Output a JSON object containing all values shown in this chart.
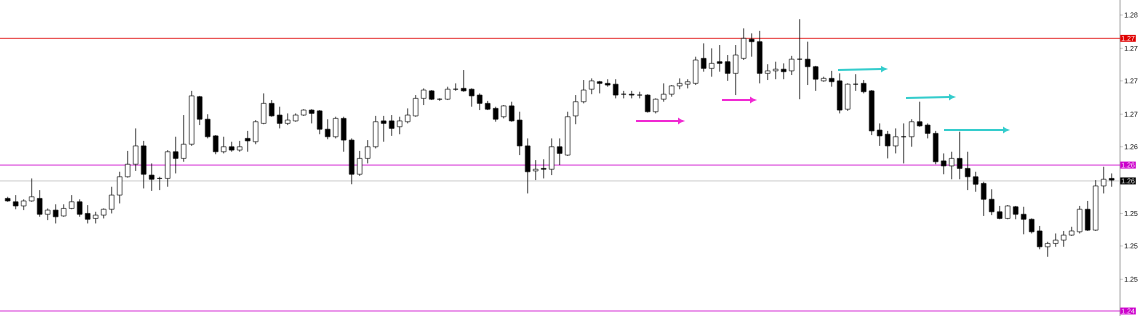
{
  "chart_data": {
    "type": "candlestick",
    "categories": [
      null,
      null,
      null,
      null,
      null,
      null,
      null,
      null,
      null,
      null,
      null,
      null,
      null,
      null,
      null,
      null,
      null,
      null,
      null,
      null,
      null,
      null,
      null,
      null,
      null,
      null,
      null,
      null,
      null,
      null,
      null,
      null,
      null,
      null,
      null,
      null,
      null,
      null,
      null,
      null,
      null,
      null,
      null,
      null,
      null,
      null,
      null,
      null,
      null,
      null,
      null,
      null,
      null,
      null,
      null,
      null,
      null,
      null,
      null,
      null,
      null,
      null,
      null,
      null,
      null,
      null,
      null,
      null,
      null,
      null,
      null,
      null,
      null,
      null,
      null,
      null,
      null,
      null,
      null,
      null,
      null,
      null,
      null,
      null,
      null,
      null,
      null,
      null,
      null,
      null,
      null,
      null,
      null,
      null,
      null,
      null,
      null,
      null,
      null,
      null,
      null,
      null,
      null,
      null,
      null,
      null,
      null,
      null,
      null,
      null,
      null,
      null,
      null,
      null,
      null,
      null,
      null,
      null,
      null,
      null,
      null,
      null,
      null,
      null,
      null,
      null,
      null,
      null,
      null,
      null,
      null,
      null,
      null,
      null,
      null,
      null,
      null,
      null,
      null
    ],
    "ohlc": [
      [
        1.2553,
        1.2555,
        1.2549,
        1.255
      ],
      [
        1.2549,
        1.2557,
        1.254,
        1.2544
      ],
      [
        1.2544,
        1.2552,
        1.2539,
        1.255
      ],
      [
        1.255,
        1.2577,
        1.2549,
        1.2555
      ],
      [
        1.2553,
        1.2563,
        1.2531,
        1.2534
      ],
      [
        1.2534,
        1.2541,
        1.2527,
        1.2539
      ],
      [
        1.2539,
        1.2546,
        1.2523,
        1.2531
      ],
      [
        1.2532,
        1.2546,
        1.2531,
        1.2541
      ],
      [
        1.2541,
        1.2557,
        1.254,
        1.2549
      ],
      [
        1.2549,
        1.2552,
        1.2531,
        1.2534
      ],
      [
        1.2535,
        1.2545,
        1.2523,
        1.2528
      ],
      [
        1.2529,
        1.2537,
        1.2523,
        1.2533
      ],
      [
        1.2533,
        1.2541,
        1.2529,
        1.254
      ],
      [
        1.254,
        1.2567,
        1.2535,
        1.2557
      ],
      [
        1.2557,
        1.2585,
        1.2547,
        1.2579
      ],
      [
        1.2579,
        1.261,
        1.2578,
        1.2594
      ],
      [
        1.2594,
        1.2637,
        1.2586,
        1.2616
      ],
      [
        1.2616,
        1.2622,
        1.2565,
        1.2582
      ],
      [
        1.2581,
        1.2595,
        1.2562,
        1.2576
      ],
      [
        1.2577,
        1.2579,
        1.2563,
        1.2577
      ],
      [
        1.2577,
        1.2611,
        1.2567,
        1.2609
      ],
      [
        1.2609,
        1.2627,
        1.2583,
        1.2601
      ],
      [
        1.2601,
        1.2653,
        1.2597,
        1.2618
      ],
      [
        1.2618,
        1.2682,
        1.2616,
        1.2676
      ],
      [
        1.2675,
        1.2676,
        1.2641,
        1.2648
      ],
      [
        1.2648,
        1.2654,
        1.2625,
        1.2627
      ],
      [
        1.2628,
        1.2629,
        1.2606,
        1.2609
      ],
      [
        1.2609,
        1.2627,
        1.2607,
        1.2615
      ],
      [
        1.2615,
        1.2621,
        1.2609,
        1.2611
      ],
      [
        1.2611,
        1.2622,
        1.2609,
        1.2615
      ],
      [
        1.2625,
        1.2634,
        1.2609,
        1.2622
      ],
      [
        1.2621,
        1.2647,
        1.2618,
        1.2645
      ],
      [
        1.2643,
        1.2679,
        1.2642,
        1.2667
      ],
      [
        1.2667,
        1.2671,
        1.2651,
        1.2652
      ],
      [
        1.2653,
        1.2663,
        1.2637,
        1.2643
      ],
      [
        1.2643,
        1.2655,
        1.2641,
        1.2647
      ],
      [
        1.2646,
        1.2655,
        1.2645,
        1.2653
      ],
      [
        1.2653,
        1.266,
        1.2652,
        1.2659
      ],
      [
        1.2659,
        1.266,
        1.2643,
        1.2655
      ],
      [
        1.2658,
        1.2659,
        1.263,
        1.2636
      ],
      [
        1.2636,
        1.2648,
        1.2624,
        1.2627
      ],
      [
        1.2627,
        1.2651,
        1.2625,
        1.2649
      ],
      [
        1.2649,
        1.2651,
        1.2609,
        1.2623
      ],
      [
        1.2623,
        1.2625,
        1.257,
        1.2582
      ],
      [
        1.2582,
        1.261,
        1.258,
        1.2601
      ],
      [
        1.2601,
        1.2623,
        1.2595,
        1.2615
      ],
      [
        1.2615,
        1.2652,
        1.2613,
        1.2645
      ],
      [
        1.2646,
        1.2652,
        1.2621,
        1.2643
      ],
      [
        1.2646,
        1.2653,
        1.2628,
        1.2637
      ],
      [
        1.2639,
        1.2651,
        1.263,
        1.2646
      ],
      [
        1.2645,
        1.2661,
        1.2643,
        1.2653
      ],
      [
        1.2652,
        1.2677,
        1.2651,
        1.2673
      ],
      [
        1.2673,
        1.2685,
        1.2665,
        1.2683
      ],
      [
        1.2682,
        1.2683,
        1.2671,
        1.2672
      ],
      [
        1.2672,
        1.2673,
        1.267,
        1.2672
      ],
      [
        1.2672,
        1.2687,
        1.2671,
        1.2684
      ],
      [
        1.2684,
        1.2691,
        1.2682,
        1.2684
      ],
      [
        1.2685,
        1.2707,
        1.2681,
        1.2682
      ],
      [
        1.2684,
        1.2685,
        1.2663,
        1.2676
      ],
      [
        1.2677,
        1.2679,
        1.2659,
        1.2667
      ],
      [
        1.2667,
        1.267,
        1.2659,
        1.266
      ],
      [
        1.2661,
        1.2663,
        1.2645,
        1.2648
      ],
      [
        1.2651,
        1.2665,
        1.2649,
        1.2664
      ],
      [
        1.2664,
        1.2669,
        1.2645,
        1.2646
      ],
      [
        1.2647,
        1.2657,
        1.2605,
        1.2616
      ],
      [
        1.2616,
        1.2625,
        1.2559,
        1.2585
      ],
      [
        1.2586,
        1.2599,
        1.2575,
        1.2588
      ],
      [
        1.2589,
        1.26,
        1.2577,
        1.2588
      ],
      [
        1.2588,
        1.2625,
        1.2581,
        1.2615
      ],
      [
        1.2615,
        1.2625,
        1.2593,
        1.2607
      ],
      [
        1.2605,
        1.2657,
        1.2604,
        1.2651
      ],
      [
        1.2652,
        1.2677,
        1.2642,
        1.2669
      ],
      [
        1.2669,
        1.2695,
        1.2667,
        1.2683
      ],
      [
        1.2684,
        1.2697,
        1.2678,
        1.2694
      ],
      [
        1.2693,
        1.2694,
        1.2679,
        1.2691
      ],
      [
        1.2691,
        1.2696,
        1.2687,
        1.2689
      ],
      [
        1.269,
        1.2696,
        1.2673,
        1.2677
      ],
      [
        1.2678,
        1.2682,
        1.2673,
        1.2678
      ],
      [
        1.2678,
        1.2682,
        1.2673,
        1.2677
      ],
      [
        1.2677,
        1.2681,
        1.2673,
        1.2677
      ],
      [
        1.2677,
        1.2678,
        1.2656,
        1.2657
      ],
      [
        1.2657,
        1.2673,
        1.2655,
        1.2672
      ],
      [
        1.2672,
        1.2691,
        1.2669,
        1.2678
      ],
      [
        1.2678,
        1.2689,
        1.2675,
        1.2688
      ],
      [
        1.2688,
        1.2697,
        1.2684,
        1.2691
      ],
      [
        1.269,
        1.2696,
        1.2685,
        1.2693
      ],
      [
        1.2691,
        1.2723,
        1.2689,
        1.2719
      ],
      [
        1.2721,
        1.2739,
        1.2705,
        1.2709
      ],
      [
        1.2709,
        1.2733,
        1.2699,
        1.2715
      ],
      [
        1.2717,
        1.2737,
        1.2705,
        1.2715
      ],
      [
        1.2717,
        1.2725,
        1.2694,
        1.2703
      ],
      [
        1.2703,
        1.2737,
        1.2677,
        1.2725
      ],
      [
        1.2721,
        1.2757,
        1.2719,
        1.2745
      ],
      [
        1.2744,
        1.2751,
        1.2723,
        1.2741
      ],
      [
        1.2741,
        1.2754,
        1.2691,
        1.2703
      ],
      [
        1.2703,
        1.2714,
        1.2695,
        1.2706
      ],
      [
        1.2706,
        1.2717,
        1.2696,
        1.2708
      ],
      [
        1.2708,
        1.2715,
        1.2696,
        1.2705
      ],
      [
        1.2706,
        1.2724,
        1.2701,
        1.272
      ],
      [
        1.272,
        1.2768,
        1.2672,
        1.272
      ],
      [
        1.272,
        1.2741,
        1.2689,
        1.2711
      ],
      [
        1.2711,
        1.2712,
        1.2682,
        1.2696
      ],
      [
        1.2694,
        1.2699,
        1.2693,
        1.2697
      ],
      [
        1.2697,
        1.2706,
        1.2687,
        1.2693
      ],
      [
        1.2694,
        1.2703,
        1.2655,
        1.2659
      ],
      [
        1.266,
        1.2691,
        1.2658,
        1.269
      ],
      [
        1.269,
        1.2702,
        1.2682,
        1.269
      ],
      [
        1.2691,
        1.2695,
        1.2679,
        1.2681
      ],
      [
        1.2682,
        1.2683,
        1.2629,
        1.2634
      ],
      [
        1.2635,
        1.2643,
        1.2616,
        1.2628
      ],
      [
        1.263,
        1.2634,
        1.2601,
        1.2616
      ],
      [
        1.2616,
        1.2637,
        1.2607,
        1.2627
      ],
      [
        1.2627,
        1.2643,
        1.2595,
        1.2627
      ],
      [
        1.2627,
        1.2648,
        1.2615,
        1.2645
      ],
      [
        1.2645,
        1.2669,
        1.2639,
        1.264
      ],
      [
        1.2641,
        1.2643,
        1.2625,
        1.2631
      ],
      [
        1.2631,
        1.2634,
        1.2594,
        1.2597
      ],
      [
        1.2598,
        1.2607,
        1.2582,
        1.2592
      ],
      [
        1.2592,
        1.2609,
        1.2576,
        1.2601
      ],
      [
        1.2601,
        1.2633,
        1.2576,
        1.2589
      ],
      [
        1.2589,
        1.2609,
        1.2563,
        1.2579
      ],
      [
        1.2579,
        1.2585,
        1.2561,
        1.257
      ],
      [
        1.2571,
        1.2573,
        1.2532,
        1.2552
      ],
      [
        1.2552,
        1.2564,
        1.2533,
        1.2537
      ],
      [
        1.2537,
        1.2544,
        1.2528,
        1.2529
      ],
      [
        1.2529,
        1.2545,
        1.2528,
        1.2544
      ],
      [
        1.2543,
        1.2544,
        1.2528,
        1.2534
      ],
      [
        1.2534,
        1.2543,
        1.251,
        1.2528
      ],
      [
        1.2528,
        1.2529,
        1.2511,
        1.2513
      ],
      [
        1.2514,
        1.252,
        1.2492,
        1.2495
      ],
      [
        1.2495,
        1.2501,
        1.2483,
        1.2499
      ],
      [
        1.2499,
        1.2511,
        1.2495,
        1.2503
      ],
      [
        1.2503,
        1.2514,
        1.2495,
        1.2509
      ],
      [
        1.2509,
        1.2519,
        1.2508,
        1.2514
      ],
      [
        1.2513,
        1.2544,
        1.2511,
        1.254
      ],
      [
        1.254,
        1.255,
        1.2514,
        1.2515
      ],
      [
        1.2515,
        1.2575,
        1.2514,
        1.2568
      ],
      [
        1.2568,
        1.2591,
        1.2559,
        1.2576
      ],
      [
        1.2577,
        1.2583,
        1.2567,
        1.2575
      ]
    ],
    "color": "#000000",
    "ylim": [
      1.2412,
      1.2791
    ],
    "yticks": [
      {
        "value": 1.2773,
        "label": "1.28"
      },
      {
        "value": 1.2733,
        "label": "1.27"
      },
      {
        "value": 1.2694,
        "label": "1.27"
      },
      {
        "value": 1.2654,
        "label": "1.27"
      },
      {
        "value": 1.2615,
        "label": "1.26"
      },
      {
        "value": 1.2535,
        "label": "1.25"
      },
      {
        "value": 1.2496,
        "label": "1.25"
      },
      {
        "value": 1.2456,
        "label": "1.25"
      }
    ],
    "tick_labels": "y",
    "ref_lines": [
      {
        "axis": "y",
        "value": 1.2745,
        "label": "1.27",
        "color": "#e00000"
      },
      {
        "axis": "y",
        "value": 1.2593,
        "label": "1.26",
        "color": "#cc00cc"
      },
      {
        "axis": "y",
        "value": 1.2574,
        "label": "1.26",
        "color": "#c0c0c0"
      },
      {
        "axis": "y",
        "value": 1.2418,
        "label": "1.24",
        "color": "#cc00cc"
      }
    ]
  }
}
